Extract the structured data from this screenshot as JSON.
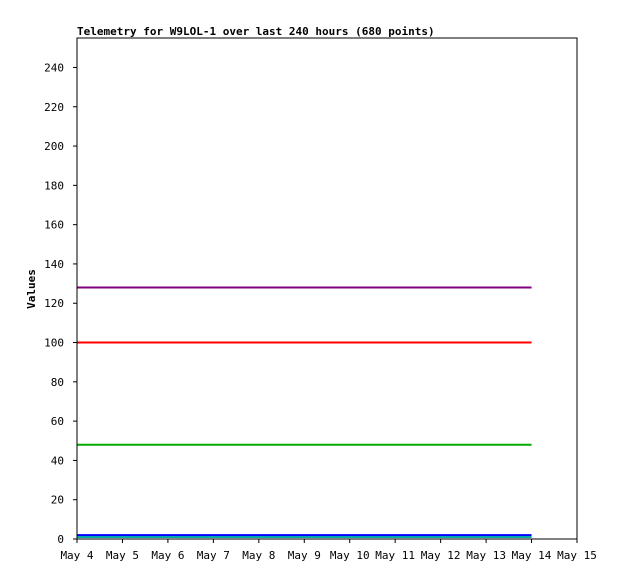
{
  "chart_data": {
    "type": "line",
    "title": "Telemetry for W9LOL-1 over last 240 hours (680 points)",
    "xlabel": "",
    "ylabel": "Values",
    "x_ticks": [
      "May 4",
      "May 5",
      "May 6",
      "May 7",
      "May 8",
      "May 9",
      "May 10",
      "May 11",
      "May 12",
      "May 13",
      "May 14",
      "May 15"
    ],
    "x_range": [
      0,
      11
    ],
    "ylim": [
      0,
      255
    ],
    "y_ticks": [
      0,
      20,
      40,
      60,
      80,
      100,
      120,
      140,
      160,
      180,
      200,
      220,
      240
    ],
    "grid": false,
    "legend": "none",
    "series": [
      {
        "color": "#800080",
        "x": [
          0,
          10
        ],
        "values": [
          128,
          128
        ]
      },
      {
        "color": "#ff0000",
        "x": [
          0,
          10
        ],
        "values": [
          100,
          100
        ]
      },
      {
        "color": "#00aa00",
        "x": [
          0,
          10
        ],
        "values": [
          48,
          48
        ]
      },
      {
        "color": "#0000ff",
        "x": [
          0,
          10
        ],
        "values": [
          2,
          2
        ]
      },
      {
        "color": "#00aaaa",
        "x": [
          0,
          10
        ],
        "values": [
          1,
          1
        ]
      }
    ]
  }
}
